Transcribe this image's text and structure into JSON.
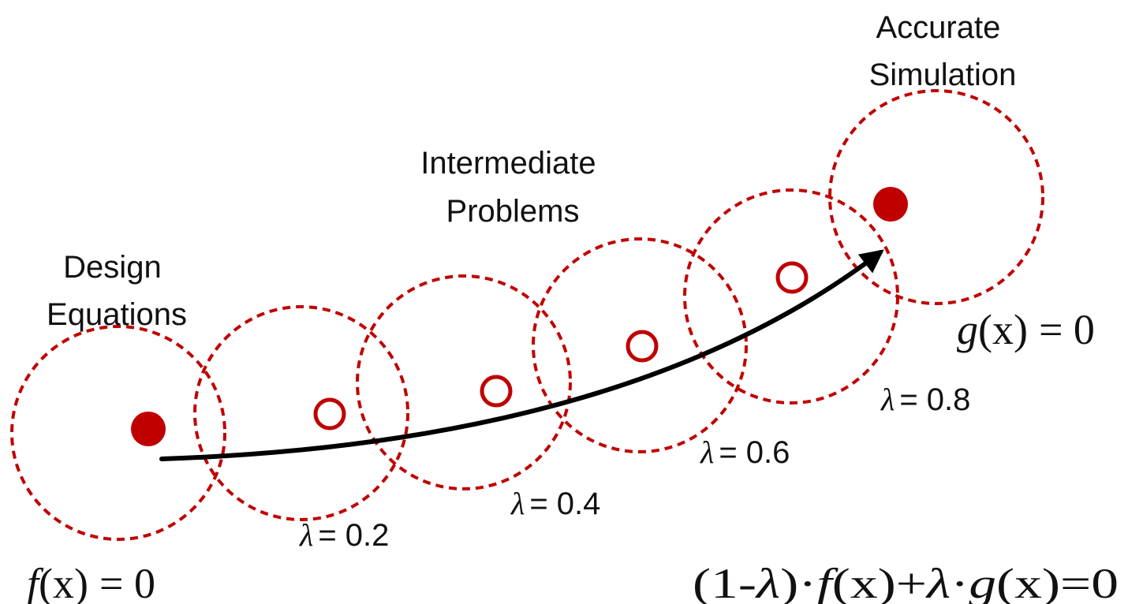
{
  "labels": {
    "design_line1": "Design",
    "design_line2": "Equations",
    "intermediate_line1": "Intermediate",
    "intermediate_line2": "Problems",
    "accurate_line1": "Accurate",
    "accurate_line2": "Simulation"
  },
  "lambda_symbol": "λ",
  "lambda_steps": [
    "= 0.2",
    "= 0.4",
    "= 0.6",
    "= 0.8"
  ],
  "equations": {
    "start": {
      "func": "f",
      "arg": "(x)",
      "rhs": "= 0"
    },
    "end": {
      "func": "g",
      "arg": "(x)",
      "rhs": "= 0"
    },
    "homotopy": {
      "p1": "(1-",
      "lam1": "λ",
      "p2": ")·",
      "f": "f",
      "p3": "(x)+",
      "lam2": "λ",
      "p4": "·",
      "g": "g",
      "p5": "(x)=0"
    }
  },
  "colors": {
    "accent": "#c00000",
    "arrow": "#000000",
    "text": "#111111"
  }
}
